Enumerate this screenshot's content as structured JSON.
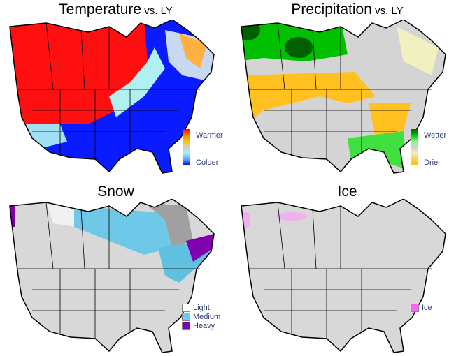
{
  "panels": [
    {
      "title_main": "Temperature",
      "title_suffix": " vs. LY",
      "legend_top": "Warmer",
      "legend_bottom": "Colder",
      "colors": [
        "#ff0000",
        "#ff4000",
        "#ff8000",
        "#ffc000",
        "#e0e0c0",
        "#d0d0d0",
        "#a0f0f0",
        "#60a0ff",
        "#1030ff",
        "#0000e0"
      ]
    },
    {
      "title_main": "Precipitation",
      "title_suffix": " vs. LY",
      "legend_top": "Wetter",
      "legend_bottom": "Drier",
      "colors": [
        "#006000",
        "#00a000",
        "#00e000",
        "#80ff80",
        "#d0d0d0",
        "#f0f0c0",
        "#fff090",
        "#ffd040",
        "#ffc000"
      ]
    },
    {
      "title_main": "Snow",
      "legend_items": [
        {
          "label": "Light",
          "color": "#ffffff"
        },
        {
          "label": "Medium",
          "color": "#60d0f0"
        },
        {
          "label": "Heavy",
          "color": "#8000b0"
        }
      ]
    },
    {
      "title_main": "Ice",
      "legend_items": [
        {
          "label": "Ice",
          "color": "#ff60ff"
        }
      ]
    }
  ]
}
